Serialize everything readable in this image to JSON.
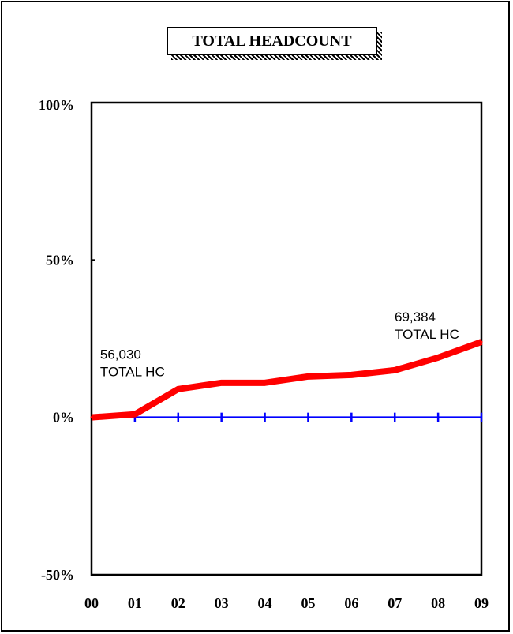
{
  "chart_data": {
    "type": "line",
    "title": "TOTAL HEADCOUNT",
    "categories": [
      "00",
      "01",
      "02",
      "03",
      "04",
      "05",
      "06",
      "07",
      "08",
      "09"
    ],
    "series": [
      {
        "values": [
          0,
          1,
          9,
          11,
          11,
          13,
          13.5,
          15,
          19,
          24
        ],
        "color": "#ff0000"
      }
    ],
    "baseline": {
      "value": 0,
      "color": "#0000ff"
    },
    "yticks": [
      {
        "value": 100,
        "label": "100%"
      },
      {
        "value": 50,
        "label": "50%"
      },
      {
        "value": 0,
        "label": "0%"
      },
      {
        "value": -50,
        "label": "-50%"
      }
    ],
    "ylim": [
      -50,
      100
    ],
    "annotations": [
      {
        "index": 1,
        "line1": "56,030",
        "line2": "TOTAL HC"
      },
      {
        "index": 9,
        "line1": "69,384",
        "line2": "TOTAL HC"
      }
    ],
    "grid": false,
    "legend": "none"
  }
}
